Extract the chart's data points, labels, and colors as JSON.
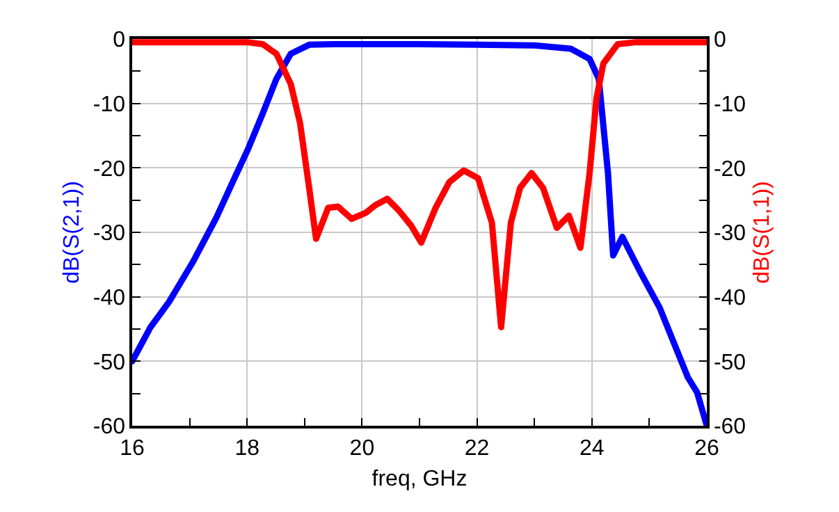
{
  "chart_data": {
    "type": "line",
    "xlabel": "freq, GHz",
    "ylabel": "dB(S(2,1))",
    "y2label": "dB(S(1,1))",
    "xlim": [
      16,
      26
    ],
    "xticks": [
      16,
      {
        "value": 17,
        "label": null
      },
      18,
      {
        "value": 19,
        "label": null
      },
      20,
      {
        "value": 21,
        "label": null
      },
      22,
      {
        "value": 23,
        "label": null
      },
      24,
      {
        "value": 25,
        "label": null
      },
      26
    ],
    "ylim": [
      -60,
      0
    ],
    "yticks": [
      -60,
      {
        "value": -55,
        "label": null
      },
      -50,
      {
        "value": -45,
        "label": null
      },
      -40,
      {
        "value": -35,
        "label": null
      },
      -30,
      {
        "value": -25,
        "label": null
      },
      -20,
      {
        "value": -15,
        "label": null
      },
      -10,
      {
        "value": -5,
        "label": null
      },
      0
    ],
    "y2lim": [
      -60,
      0
    ],
    "y2ticks": [
      -60,
      {
        "value": -55,
        "label": null
      },
      -50,
      {
        "value": -45,
        "label": null
      },
      -40,
      {
        "value": -35,
        "label": null
      },
      -30,
      {
        "value": -25,
        "label": null
      },
      -20,
      {
        "value": -15,
        "label": null
      },
      -10,
      {
        "value": -5,
        "label": null
      },
      0
    ],
    "grid": true,
    "marker": "none",
    "line_style": "solid",
    "series": [
      {
        "color": "#0000ff",
        "x": [
          16.0,
          16.32,
          16.64,
          17.05,
          17.46,
          17.78,
          18.02,
          18.27,
          18.51,
          18.76,
          19.08,
          19.5,
          20.0,
          21.0,
          22.0,
          23.0,
          23.63,
          23.96,
          24.12,
          24.28,
          24.37,
          24.53,
          24.85,
          25.18,
          25.42,
          25.67,
          25.83,
          25.99
        ],
        "values": [
          -50,
          -44.7,
          -40.8,
          -34.7,
          -27.8,
          -21.6,
          -17,
          -11.6,
          -6.2,
          -2.3,
          -0.9,
          -0.8,
          -0.8,
          -0.8,
          -0.9,
          -1.0,
          -1.5,
          -3.1,
          -6.2,
          -20.8,
          -33.6,
          -30.7,
          -36.3,
          -41.7,
          -47,
          -52.5,
          -54.8,
          -59.7
        ]
      },
      {
        "color": "#ff0000",
        "axis": "y2",
        "x": [
          16.0,
          17.0,
          18.0,
          18.27,
          18.51,
          18.76,
          18.92,
          19.08,
          19.2,
          19.41,
          19.58,
          19.82,
          20.06,
          20.23,
          20.44,
          20.64,
          20.85,
          21.03,
          21.28,
          21.52,
          21.77,
          22.02,
          22.26,
          22.42,
          22.59,
          22.75,
          22.95,
          23.15,
          23.39,
          23.6,
          23.8,
          23.96,
          24.08,
          24.2,
          24.45,
          24.77,
          25.5,
          26.0
        ],
        "values": [
          -0.5,
          -0.5,
          -0.5,
          -0.8,
          -2.3,
          -7,
          -13,
          -23.1,
          -31,
          -26.2,
          -26,
          -27.9,
          -27,
          -25.8,
          -24.8,
          -26.6,
          -28.9,
          -31.6,
          -26.2,
          -22.2,
          -20.4,
          -21.6,
          -28.5,
          -44.7,
          -28.5,
          -23.1,
          -20.8,
          -23.1,
          -29.3,
          -27.4,
          -32.4,
          -20.8,
          -9.2,
          -3.8,
          -0.8,
          -0.5,
          -0.5,
          -0.5
        ]
      }
    ]
  }
}
